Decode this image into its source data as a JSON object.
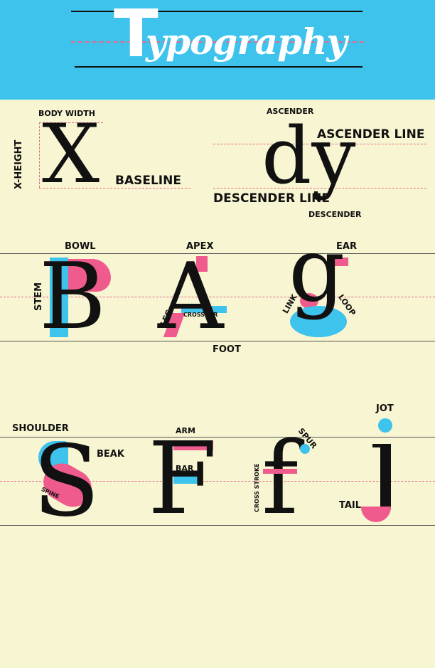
{
  "header": {
    "title_first": "T",
    "title_rest": "ypography",
    "background": "#3ec3ec"
  },
  "colors": {
    "pink": "#ef5b8c",
    "blue": "#3ec3ec",
    "ink": "#111111",
    "paper": "#f8f5d2"
  },
  "section1": {
    "letter_x": "X",
    "labels": {
      "body_width": "BODY WIDTH",
      "x_height": "X-HEIGHT",
      "baseline": "BASELINE"
    },
    "letters_dy": "dy",
    "labels2": {
      "ascender": "ASCENDER",
      "ascender_line": "ASCENDER LINE",
      "descender_line": "DESCENDER LINE",
      "descender": "DESCENDER"
    }
  },
  "section2": {
    "letters": [
      "B",
      "A",
      "g"
    ],
    "labels": {
      "bowl": "BOWL",
      "apex": "APEX",
      "ear": "EAR",
      "stem": "STEM",
      "leg": "LEG",
      "crossbar": "CROSSBAR",
      "link": "LINK",
      "loop": "LOOP",
      "foot": "FOOT"
    }
  },
  "section3": {
    "letters": [
      "S",
      "F",
      "f",
      "j"
    ],
    "labels": {
      "shoulder": "SHOULDER",
      "beak": "BEAK",
      "spine": "SPINE",
      "arm": "ARM",
      "bar": "BAR",
      "cross_stroke": "CROSS STROKE",
      "spur": "SPUR",
      "jot": "JOT",
      "tail": "TAIL"
    }
  }
}
